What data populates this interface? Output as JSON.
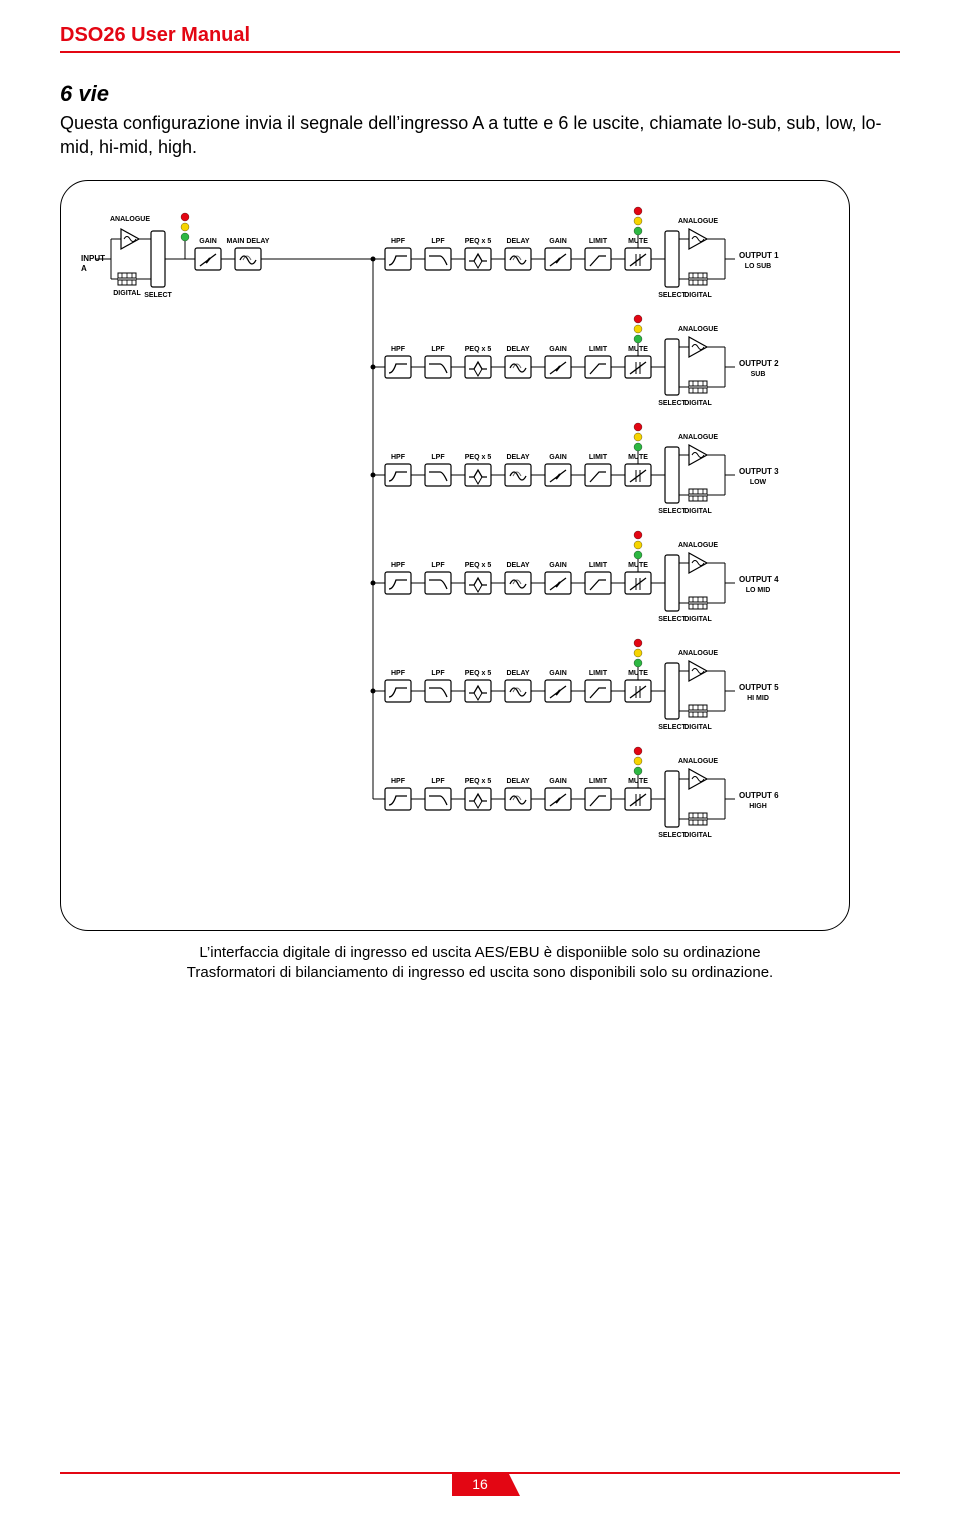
{
  "colors": {
    "red": "#e30613",
    "text": "#1a1a1a",
    "green": "#2db742",
    "yellow": "#f6d400",
    "redDot": "#e30613",
    "black": "#000000",
    "lineGray": "#666666"
  },
  "header": {
    "title": "DSO26 User Manual"
  },
  "section": {
    "title": "6 vie",
    "body": "Questa configurazione invia il segnale dell’ingresso A a tutte e 6 le uscite, chiamate lo-sub, sub, low, lo-mid, hi-mid, high."
  },
  "diagram": {
    "input": {
      "label": "INPUT A",
      "analogue": "ANALOGUE",
      "digital": "DIGITAL",
      "select": "SELECT",
      "gain": "GAIN",
      "mainDelay": "MAIN DELAY"
    },
    "chainLabels": [
      "HPF",
      "LPF",
      "PEQ x 5",
      "DELAY",
      "GAIN",
      "LIMIT",
      "MUTE"
    ],
    "outputSide": {
      "analogue": "ANALOGUE",
      "digital": "DIGITAL",
      "select": "SELECT"
    },
    "outputs": [
      {
        "name": "OUTPUT 1",
        "sub": "LO SUB"
      },
      {
        "name": "OUTPUT 2",
        "sub": "SUB"
      },
      {
        "name": "OUTPUT 3",
        "sub": "LOW"
      },
      {
        "name": "OUTPUT 4",
        "sub": "LO MID"
      },
      {
        "name": "OUTPUT 5",
        "sub": "HI MID"
      },
      {
        "name": "OUTPUT 6",
        "sub": "HIGH"
      }
    ]
  },
  "caption": "L’interfaccia digitale di ingresso ed uscita AES/EBU è disponiible solo su ordinazione\nTrasformatori di bilanciamento di ingresso ed uscita sono disponibili solo su ordinazione.",
  "footer": {
    "page": "16"
  }
}
